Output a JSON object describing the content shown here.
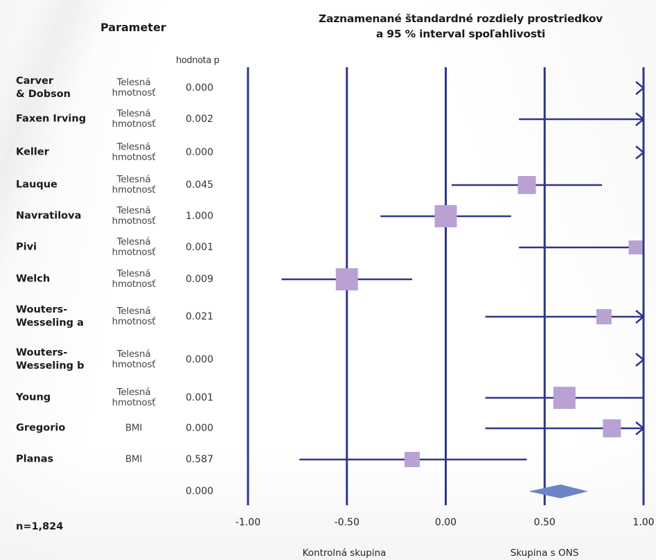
{
  "title_line1": "Zaznamenané štandardné rozdiely prostriedkov",
  "title_line2": "a 95 % interval spoľahlivosti",
  "param_header": "Parameter",
  "p_header": "hodnota p",
  "n_label": "n=1,824",
  "control_label": "Kontrolná skupina",
  "treatment_label": "Skupina s ONS",
  "colors": {
    "line": "#2e3589",
    "box": "#b9a1d4",
    "diamond": "#6c84c8"
  },
  "chart_data": {
    "type": "forest",
    "title": "Zaznamenané štandardné rozdiely prostriedkov a 95 % interval spoľahlivosti",
    "xlim": [
      -1.0,
      1.0
    ],
    "x_ticks": [
      "-1.00",
      "-0.50",
      "0.00",
      "0.50",
      "1.00"
    ],
    "tick_values": [
      -1.0,
      -0.5,
      0.0,
      0.5,
      1.0
    ],
    "studies": [
      {
        "name_lines": [
          "Carver",
          "& Dobson"
        ],
        "param_lines": [
          "Telesná",
          "hmotnosť"
        ],
        "p": "0.000",
        "est": null,
        "lo": null,
        "hi": 1.0,
        "arrow": true,
        "arrow_style": "open",
        "box": 0
      },
      {
        "name_lines": [
          "Faxen Irving"
        ],
        "param_lines": [
          "Telesná",
          "hmotnosť"
        ],
        "p": "0.002",
        "est": null,
        "lo": 0.37,
        "hi": 1.0,
        "arrow": true,
        "arrow_style": "line",
        "box": 0
      },
      {
        "name_lines": [
          "Keller"
        ],
        "param_lines": [
          "Telesná",
          "hmotnosť"
        ],
        "p": "0.000",
        "est": null,
        "lo": null,
        "hi": 1.0,
        "arrow": true,
        "arrow_style": "open",
        "box": 0
      },
      {
        "name_lines": [
          "Lauque"
        ],
        "param_lines": [
          "Telesná",
          "hmotnosť"
        ],
        "p": "0.045",
        "est": 0.41,
        "lo": 0.03,
        "hi": 0.79,
        "arrow": false,
        "box": 26
      },
      {
        "name_lines": [
          "Navratilova"
        ],
        "param_lines": [
          "Telesná",
          "hmotnosť"
        ],
        "p": "1.000",
        "est": 0.0,
        "lo": -0.33,
        "hi": 0.33,
        "arrow": false,
        "box": 32
      },
      {
        "name_lines": [
          "Pivi"
        ],
        "param_lines": [
          "Telesná",
          "hmotnosť"
        ],
        "p": "0.001",
        "est": 0.96,
        "lo": 0.37,
        "hi": 1.0,
        "arrow": false,
        "box": 20
      },
      {
        "name_lines": [
          "Welch"
        ],
        "param_lines": [
          "Telesná",
          "hmotnosť"
        ],
        "p": "0.009",
        "est": -0.5,
        "lo": -0.83,
        "hi": -0.17,
        "arrow": false,
        "box": 32
      },
      {
        "name_lines": [
          "Wouters-",
          "Wesseling a"
        ],
        "param_lines": [
          "Telesná",
          "hmotnosť"
        ],
        "p": "0.021",
        "est": 0.8,
        "lo": 0.2,
        "hi": 1.0,
        "arrow": true,
        "arrow_style": "line",
        "box": 22
      },
      {
        "name_lines": [
          "Wouters-",
          "Wesseling b"
        ],
        "param_lines": [
          "Telesná",
          "hmotnosť"
        ],
        "p": "0.000",
        "est": null,
        "lo": null,
        "hi": 1.0,
        "arrow": true,
        "arrow_style": "open",
        "box": 0
      },
      {
        "name_lines": [
          "Young"
        ],
        "param_lines": [
          "Telesná",
          "hmotnosť"
        ],
        "p": "0.001",
        "est": 0.6,
        "lo": 0.2,
        "hi": 1.0,
        "arrow": false,
        "box": 32
      },
      {
        "name_lines": [
          "Gregorio"
        ],
        "param_lines": [
          "BMI"
        ],
        "p": "0.000",
        "est": 0.84,
        "lo": 0.2,
        "hi": 1.0,
        "arrow": true,
        "arrow_style": "line",
        "box": 26
      },
      {
        "name_lines": [
          "Planas"
        ],
        "param_lines": [
          "BMI"
        ],
        "p": "0.587",
        "est": -0.17,
        "lo": -0.74,
        "hi": 0.41,
        "arrow": false,
        "box": 22
      }
    ],
    "summary": {
      "p": "0.000",
      "est": 0.58,
      "lo": 0.42,
      "hi": 0.72
    }
  }
}
